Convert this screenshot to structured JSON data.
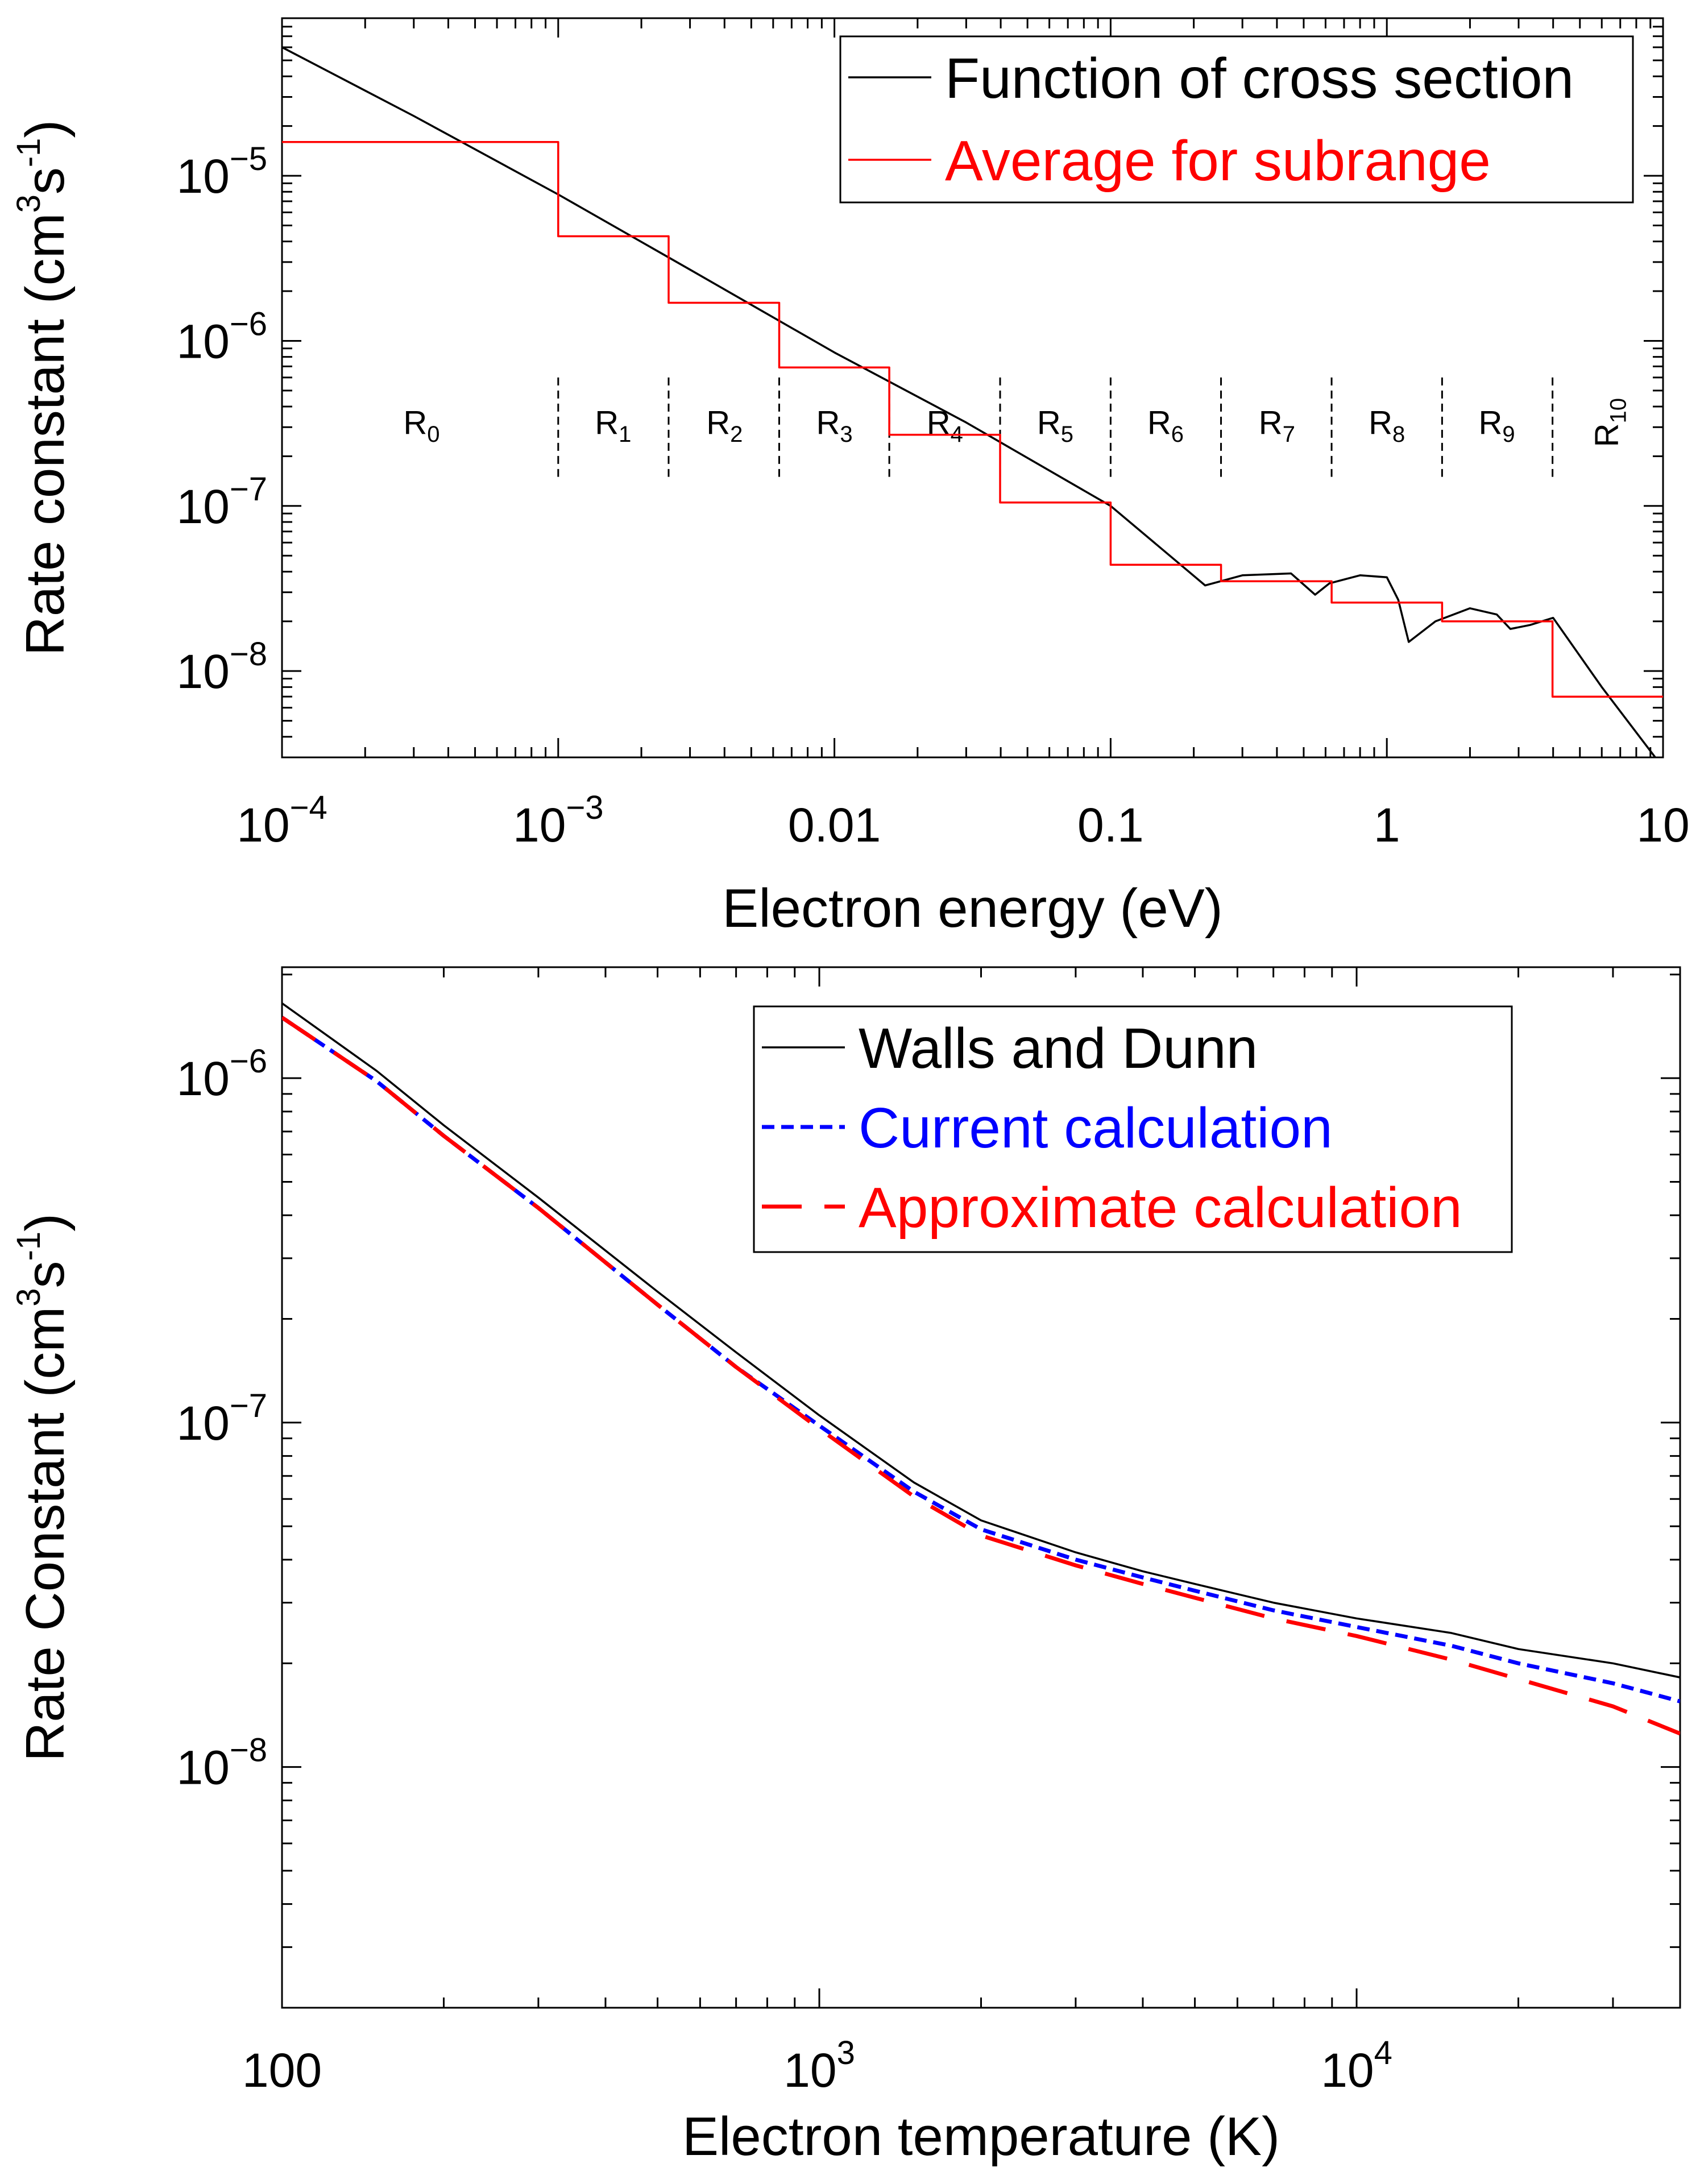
{
  "chart_data": [
    {
      "type": "line",
      "xscale": "log",
      "yscale": "log",
      "xlabel": "Electron energy (eV)",
      "ylabel": {
        "base": "Rate constant (cm",
        "sup1": "3",
        "mid": "s",
        "sup2": "-1",
        "end": ")"
      },
      "xlim": [
        0.0001,
        10
      ],
      "ylim": [
        3e-09,
        9e-05
      ],
      "x_ticks": [
        {
          "value": 0.0001,
          "base": "10",
          "exp": "−4"
        },
        {
          "value": 0.001,
          "base": "10",
          "exp": "−3"
        },
        {
          "value": 0.01,
          "base": "0.01",
          "exp": ""
        },
        {
          "value": 0.1,
          "base": "0.1",
          "exp": ""
        },
        {
          "value": 1,
          "base": "1",
          "exp": ""
        },
        {
          "value": 10,
          "base": "10",
          "exp": ""
        }
      ],
      "y_ticks": [
        {
          "value": 1e-08,
          "base": "10",
          "exp": "−8"
        },
        {
          "value": 1e-07,
          "base": "10",
          "exp": "−7"
        },
        {
          "value": 1e-06,
          "base": "10",
          "exp": "−6"
        },
        {
          "value": 1e-05,
          "base": "10",
          "exp": "−5"
        }
      ],
      "legend": {
        "position": "top-right",
        "entries": [
          {
            "label": "Function of cross section",
            "color": "#000000",
            "dash": "solid"
          },
          {
            "label": "Average for subrange",
            "color": "#ff0000",
            "dash": "solid"
          }
        ]
      },
      "series": [
        {
          "name": "Function of cross section",
          "color": "#000000",
          "x": [
            0.0001,
            0.0003,
            0.001,
            0.003,
            0.01,
            0.03,
            0.1,
            0.22,
            0.3,
            0.45,
            0.55,
            0.62,
            0.8,
            1.0,
            1.1,
            1.2,
            1.5,
            2.0,
            2.5,
            2.8,
            3.3,
            4.0,
            6.0,
            10.0
          ],
          "y": [
            6e-05,
            2.3e-05,
            7.7e-06,
            2.7e-06,
            8.5e-07,
            3.2e-07,
            1e-07,
            3.3e-08,
            3.8e-08,
            3.9e-08,
            2.9e-08,
            3.4e-08,
            3.8e-08,
            3.7e-08,
            2.7e-08,
            1.5e-08,
            2e-08,
            2.4e-08,
            2.2e-08,
            1.8e-08,
            1.9e-08,
            2.1e-08,
            8e-09,
            2.6e-09
          ]
        },
        {
          "name": "Average for subrange",
          "color": "#ff0000",
          "x": [
            0.0001,
            0.001,
            0.001,
            0.00251,
            0.00251,
            0.00631,
            0.00631,
            0.0158,
            0.0158,
            0.0398,
            0.0398,
            0.1,
            0.1,
            0.251,
            0.251,
            0.631,
            0.631,
            1.585,
            1.585,
            3.98,
            3.98,
            10
          ],
          "y": [
            1.6e-05,
            1.6e-05,
            4.3e-06,
            4.3e-06,
            1.7e-06,
            1.7e-06,
            6.9e-07,
            6.9e-07,
            2.7e-07,
            2.7e-07,
            1.05e-07,
            1.05e-07,
            4.4e-08,
            4.4e-08,
            3.5e-08,
            3.5e-08,
            2.6e-08,
            2.6e-08,
            2e-08,
            2e-08,
            7e-09,
            7e-09
          ]
        }
      ],
      "regions": {
        "boundaries": [
          0.001,
          0.00251,
          0.00631,
          0.0158,
          0.0398,
          0.1,
          0.251,
          0.631,
          1.585,
          3.98,
          10
        ],
        "line_y_range": [
          1.5e-07,
          6e-07
        ],
        "label_y": 3.2e-07,
        "labels": [
          {
            "base": "R",
            "sub": "0",
            "x": 0.00032
          },
          {
            "base": "R",
            "sub": "1",
            "x": 0.00158
          },
          {
            "base": "R",
            "sub": "2",
            "x": 0.004
          },
          {
            "base": "R",
            "sub": "3",
            "x": 0.01
          },
          {
            "base": "R",
            "sub": "4",
            "x": 0.0251
          },
          {
            "base": "R",
            "sub": "5",
            "x": 0.063
          },
          {
            "base": "R",
            "sub": "6",
            "x": 0.158
          },
          {
            "base": "R",
            "sub": "7",
            "x": 0.4
          },
          {
            "base": "R",
            "sub": "8",
            "x": 1.0
          },
          {
            "base": "R",
            "sub": "9",
            "x": 2.5
          },
          {
            "base": "R",
            "sub": "10",
            "x": 6.3,
            "rotated": true
          }
        ]
      }
    },
    {
      "type": "line",
      "xscale": "log",
      "yscale": "log",
      "xlabel": "Electron temperature (K)",
      "ylabel": {
        "base": "Rate Constant (cm",
        "sup1": "3",
        "mid": "s",
        "sup2": "-1",
        "end": ")"
      },
      "xlim": [
        100,
        40000
      ],
      "ylim": [
        2e-09,
        2.1e-06
      ],
      "x_ticks": [
        {
          "value": 100,
          "base": "100",
          "exp": ""
        },
        {
          "value": 1000,
          "base": "10",
          "exp": "3"
        },
        {
          "value": 10000,
          "base": "10",
          "exp": "4"
        }
      ],
      "y_ticks": [
        {
          "value": 1e-08,
          "base": "10",
          "exp": "−8"
        },
        {
          "value": 1e-07,
          "base": "10",
          "exp": "−7"
        },
        {
          "value": 1e-06,
          "base": "10",
          "exp": "−6"
        }
      ],
      "legend": {
        "position": "top-right",
        "entries": [
          {
            "label": "Walls and Dunn",
            "color": "#000000",
            "dash": "solid"
          },
          {
            "label": "Current calculation",
            "color": "#0000ff",
            "dash": "short-dash"
          },
          {
            "label": "Approximate calculation",
            "color": "#ff0000",
            "dash": "long-dash"
          }
        ]
      },
      "series": [
        {
          "name": "Walls and Dunn",
          "color": "#000000",
          "dash": "solid",
          "x": [
            100,
            150,
            200,
            300,
            500,
            700,
            1000,
            1500,
            2000,
            3000,
            4000,
            5000,
            7000,
            10000,
            15000,
            20000,
            30000,
            40000
          ],
          "y": [
            1.65e-06,
            1.05e-06,
            7.3e-07,
            4.5e-07,
            2.4e-07,
            1.6e-07,
            1.05e-07,
            6.7e-08,
            5.2e-08,
            4.2e-08,
            3.7e-08,
            3.4e-08,
            3e-08,
            2.7e-08,
            2.45e-08,
            2.2e-08,
            2e-08,
            1.82e-08
          ]
        },
        {
          "name": "Current calculation",
          "color": "#0000ff",
          "dash": "short-dash",
          "x": [
            100,
            150,
            200,
            300,
            500,
            700,
            1000,
            1500,
            2000,
            3000,
            4000,
            5000,
            7000,
            10000,
            15000,
            20000,
            30000,
            40000
          ],
          "y": [
            1.5e-06,
            9.8e-07,
            6.8e-07,
            4.2e-07,
            2.2e-07,
            1.45e-07,
            9.8e-08,
            6.3e-08,
            4.9e-08,
            4e-08,
            3.55e-08,
            3.25e-08,
            2.85e-08,
            2.55e-08,
            2.25e-08,
            2e-08,
            1.75e-08,
            1.55e-08
          ]
        },
        {
          "name": "Approximate calculation",
          "color": "#ff0000",
          "dash": "long-dash",
          "x": [
            100,
            150,
            200,
            300,
            500,
            700,
            1000,
            1500,
            2000,
            3000,
            4000,
            5000,
            7000,
            10000,
            15000,
            20000,
            30000,
            40000
          ],
          "y": [
            1.5e-06,
            9.8e-07,
            6.8e-07,
            4.2e-07,
            2.2e-07,
            1.45e-07,
            9.6e-08,
            6.1e-08,
            4.7e-08,
            3.85e-08,
            3.4e-08,
            3.1e-08,
            2.7e-08,
            2.4e-08,
            2.05e-08,
            1.8e-08,
            1.5e-08,
            1.25e-08
          ]
        }
      ]
    }
  ]
}
